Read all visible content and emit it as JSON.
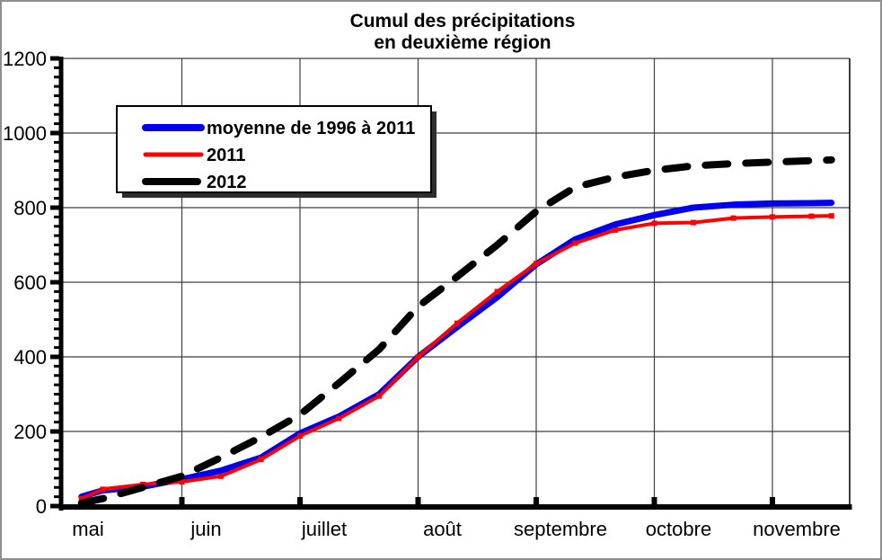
{
  "window": {
    "background": "#ffffff",
    "border_color": "#8f8f8f"
  },
  "chart_data": {
    "type": "line",
    "title": "Cumul des précipitations",
    "subtitle": "en deuxième région",
    "grid": true,
    "legend_position": "top-left",
    "xlabel": "",
    "ylabel": "",
    "ylim": [
      0,
      1200
    ],
    "y_ticks": [
      0,
      200,
      400,
      600,
      800,
      1000,
      1200
    ],
    "y_minor_step": 25,
    "x_months": [
      "mai",
      "juin",
      "juillet",
      "août",
      "septembre",
      "octobre",
      "novembre"
    ],
    "x_units_months": [
      0.15,
      0.33,
      0.67,
      1,
      1.33,
      1.67,
      2,
      2.33,
      2.67,
      3,
      3.33,
      3.67,
      4,
      4.33,
      4.67,
      5,
      5.33,
      5.67,
      6,
      6.33,
      6.5
    ],
    "series": [
      {
        "name": "moyenne de 1996 à 2011",
        "color": "#0000ee",
        "style": "solid",
        "width": 7,
        "values": [
          25,
          42,
          52,
          72,
          95,
          130,
          195,
          240,
          300,
          400,
          480,
          560,
          648,
          715,
          755,
          780,
          800,
          808,
          811,
          812,
          813
        ]
      },
      {
        "name": "2011",
        "color": "#ff0000",
        "style": "solid-markers",
        "width": 4,
        "values": [
          20,
          45,
          58,
          65,
          80,
          125,
          188,
          235,
          295,
          400,
          490,
          575,
          650,
          705,
          740,
          758,
          760,
          772,
          775,
          777,
          778
        ]
      },
      {
        "name": "2012",
        "color": "#000000",
        "style": "dashed",
        "width": 8,
        "values": [
          8,
          20,
          50,
          80,
          130,
          185,
          245,
          330,
          420,
          535,
          615,
          700,
          790,
          855,
          882,
          900,
          912,
          918,
          922,
          926,
          928
        ]
      }
    ],
    "grid_color": "#3f3f3f"
  }
}
